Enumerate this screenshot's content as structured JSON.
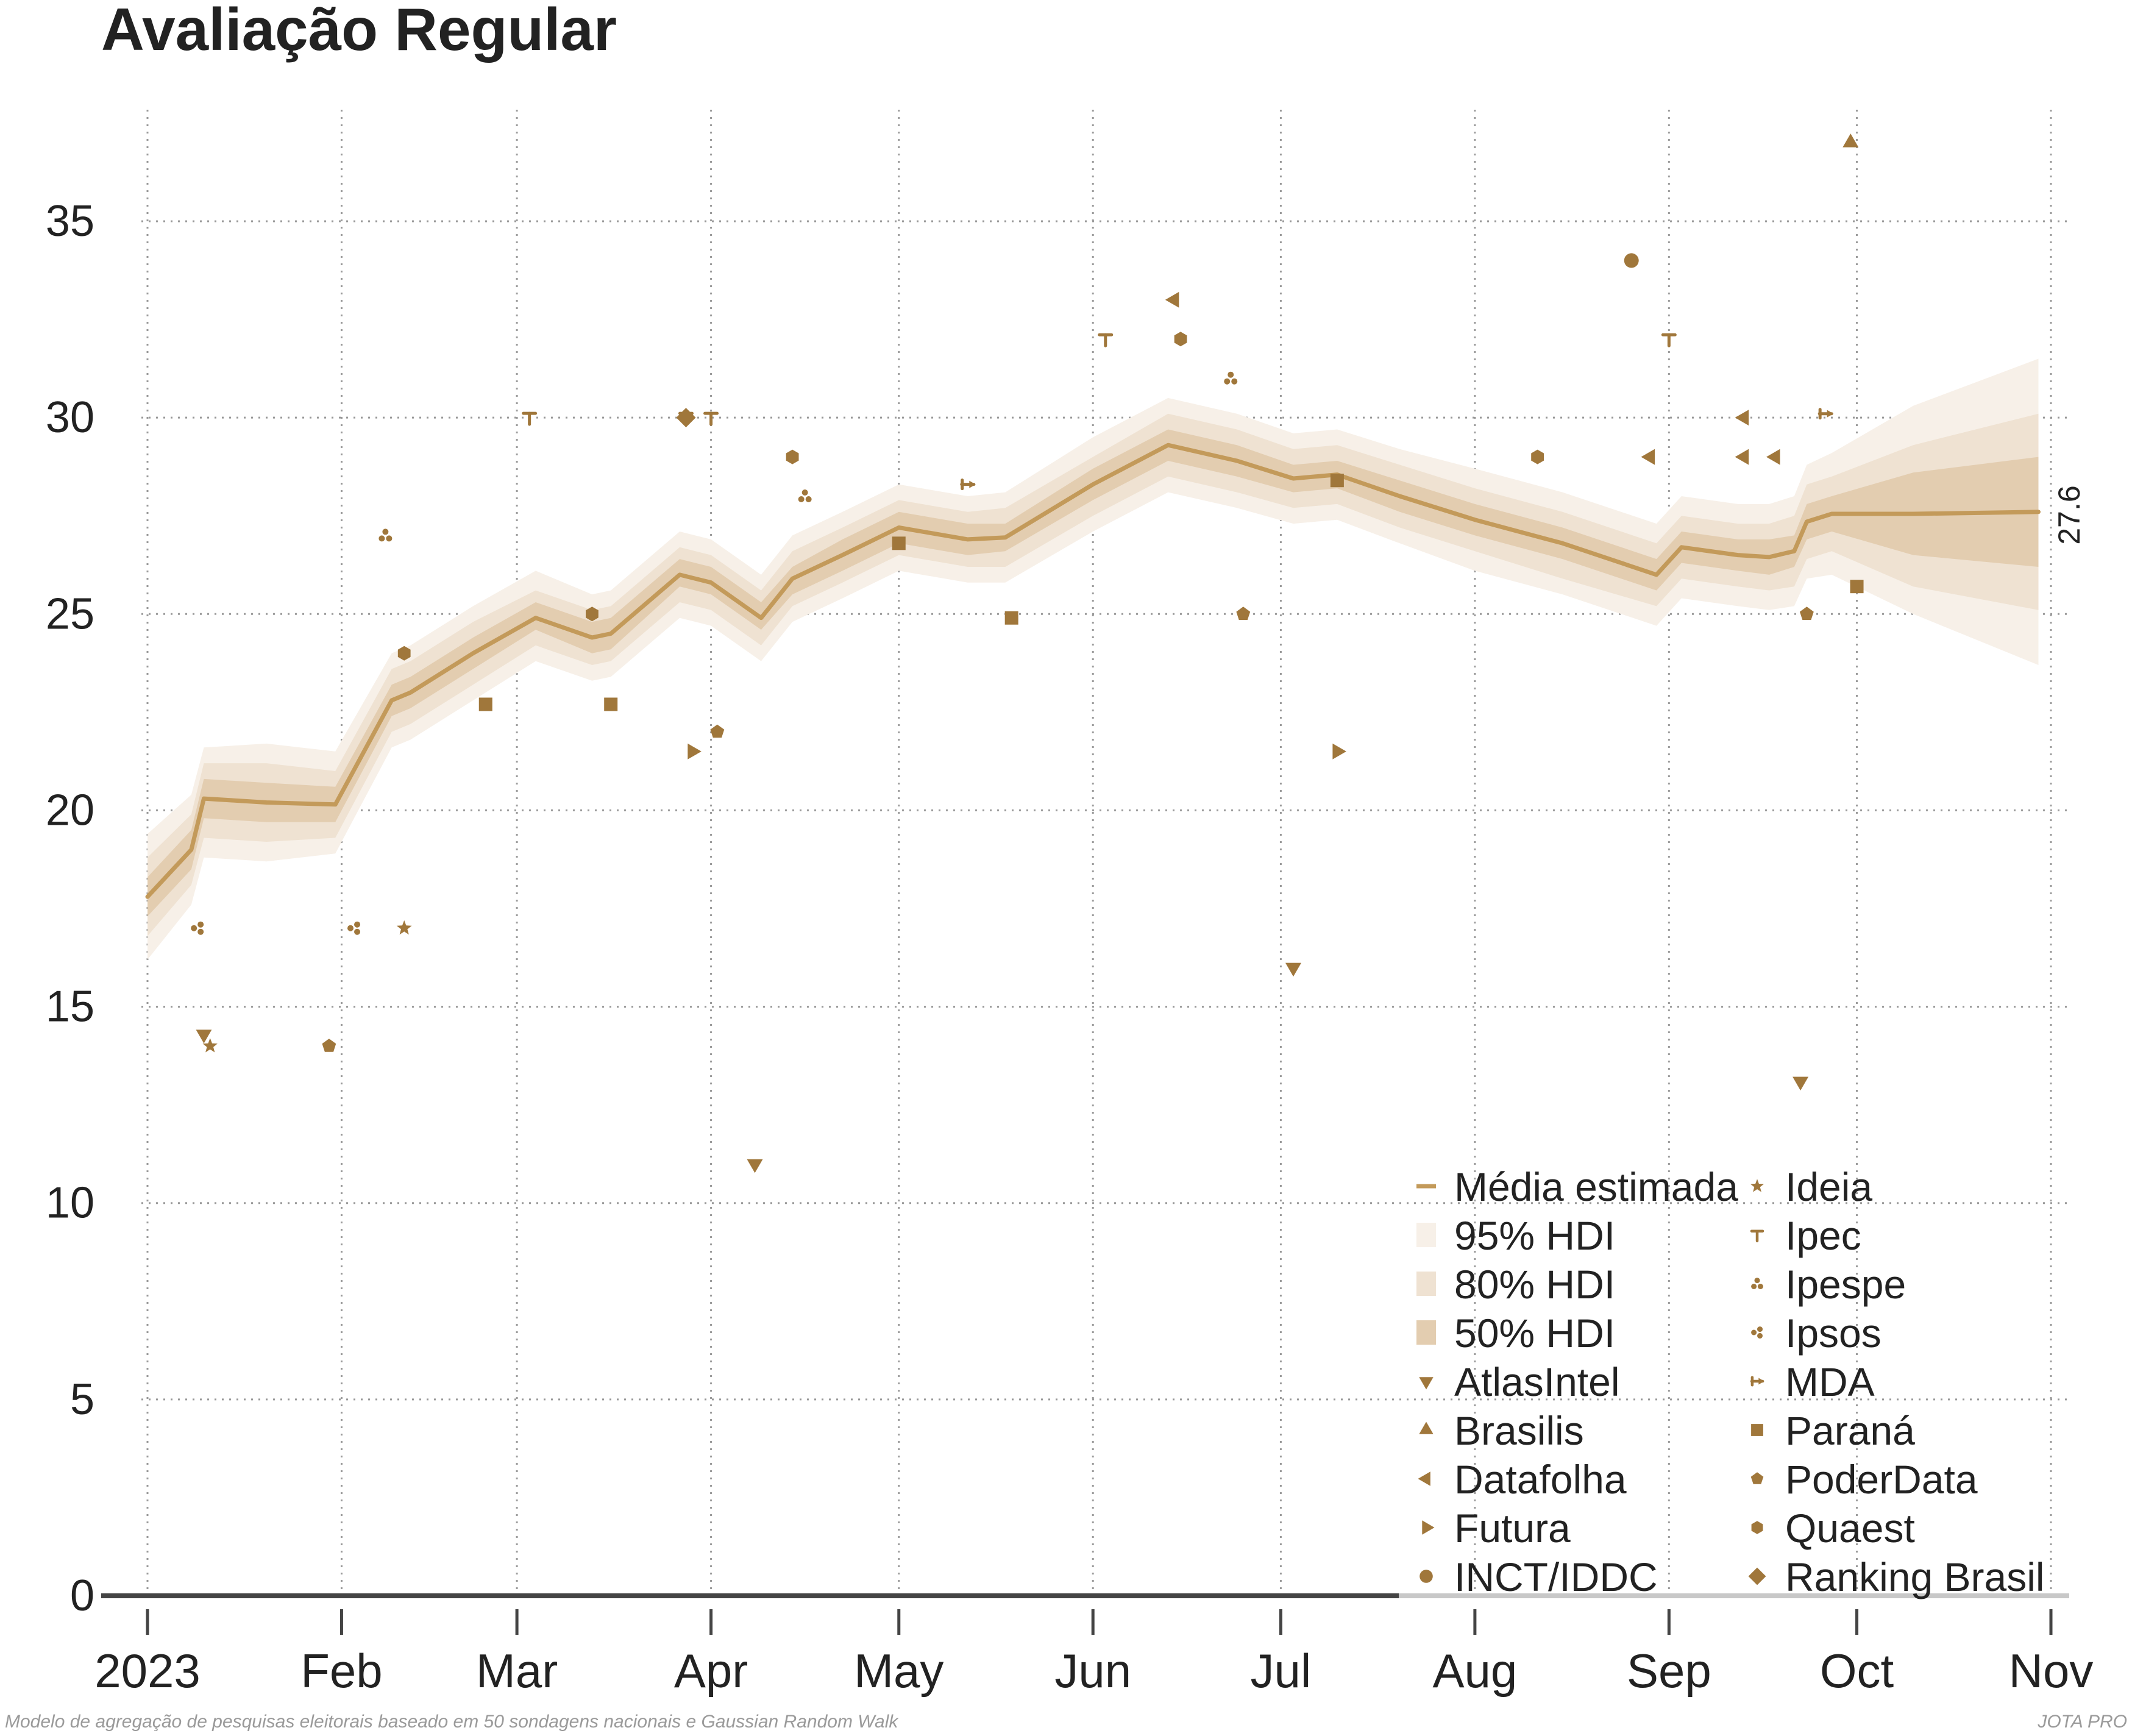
{
  "colors": {
    "accent": "#a0773b",
    "line": "#c39a5a",
    "band95": "#f7f0e8",
    "band80": "#efe2d2",
    "band50": "#e3cdb0",
    "grid": "#9a9a9a",
    "axis": "#444444",
    "text": "#222222",
    "caption": "#9a9a9a"
  },
  "chart_data": {
    "type": "line",
    "title": "Avaliação Regular",
    "xlabel": "",
    "ylabel": "",
    "ylim": [
      0,
      37.5
    ],
    "xlim": [
      "2023-01-01",
      "2023-11-01"
    ],
    "y_ticks": [
      0,
      5,
      10,
      15,
      20,
      25,
      30,
      35
    ],
    "x_ticks": [
      {
        "date": "2023-01-01",
        "label": "2023"
      },
      {
        "date": "2023-02-01",
        "label": "Feb"
      },
      {
        "date": "2023-03-01",
        "label": "Mar"
      },
      {
        "date": "2023-04-01",
        "label": "Apr"
      },
      {
        "date": "2023-05-01",
        "label": "May"
      },
      {
        "date": "2023-06-01",
        "label": "Jun"
      },
      {
        "date": "2023-07-01",
        "label": "Jul"
      },
      {
        "date": "2023-08-01",
        "label": "Aug"
      },
      {
        "date": "2023-09-01",
        "label": "Sep"
      },
      {
        "date": "2023-10-01",
        "label": "Oct"
      },
      {
        "date": "2023-11-01",
        "label": "Nov"
      }
    ],
    "grid": true,
    "legend_position": "bottom-right",
    "final_value_label": "27.6",
    "trend": {
      "name": "Média estimada",
      "points": [
        {
          "date": "2023-01-01",
          "mean": 17.8,
          "hdi95": [
            16.2,
            19.4
          ],
          "hdi80": [
            16.8,
            18.8
          ],
          "hdi50": [
            17.3,
            18.3
          ]
        },
        {
          "date": "2023-01-08",
          "mean": 19.0,
          "hdi95": [
            17.6,
            20.4
          ],
          "hdi80": [
            18.1,
            19.9
          ],
          "hdi50": [
            18.5,
            19.5
          ]
        },
        {
          "date": "2023-01-10",
          "mean": 20.3,
          "hdi95": [
            18.8,
            21.6
          ],
          "hdi80": [
            19.3,
            21.2
          ],
          "hdi50": [
            19.8,
            20.8
          ]
        },
        {
          "date": "2023-01-20",
          "mean": 20.2,
          "hdi95": [
            18.7,
            21.7
          ],
          "hdi80": [
            19.2,
            21.2
          ],
          "hdi50": [
            19.7,
            20.7
          ]
        },
        {
          "date": "2023-01-31",
          "mean": 20.15,
          "hdi95": [
            18.9,
            21.5
          ],
          "hdi80": [
            19.3,
            21.0
          ],
          "hdi50": [
            19.7,
            20.6
          ]
        },
        {
          "date": "2023-02-09",
          "mean": 22.8,
          "hdi95": [
            21.6,
            24.0
          ],
          "hdi80": [
            22.0,
            23.6
          ],
          "hdi50": [
            22.4,
            23.2
          ]
        },
        {
          "date": "2023-02-12",
          "mean": 23.0,
          "hdi95": [
            21.8,
            24.2
          ],
          "hdi80": [
            22.2,
            23.8
          ],
          "hdi50": [
            22.6,
            23.4
          ]
        },
        {
          "date": "2023-02-22",
          "mean": 24.0,
          "hdi95": [
            22.8,
            25.2
          ],
          "hdi80": [
            23.2,
            24.8
          ],
          "hdi50": [
            23.6,
            24.4
          ]
        },
        {
          "date": "2023-03-04",
          "mean": 24.9,
          "hdi95": [
            23.8,
            26.1
          ],
          "hdi80": [
            24.2,
            25.6
          ],
          "hdi50": [
            24.6,
            25.3
          ]
        },
        {
          "date": "2023-03-13",
          "mean": 24.4,
          "hdi95": [
            23.3,
            25.5
          ],
          "hdi80": [
            23.7,
            25.1
          ],
          "hdi50": [
            24.0,
            24.8
          ]
        },
        {
          "date": "2023-03-16",
          "mean": 24.5,
          "hdi95": [
            23.4,
            25.6
          ],
          "hdi80": [
            23.8,
            25.2
          ],
          "hdi50": [
            24.1,
            24.9
          ]
        },
        {
          "date": "2023-03-27",
          "mean": 26.0,
          "hdi95": [
            24.9,
            27.1
          ],
          "hdi80": [
            25.3,
            26.7
          ],
          "hdi50": [
            25.7,
            26.4
          ]
        },
        {
          "date": "2023-04-01",
          "mean": 25.8,
          "hdi95": [
            24.7,
            26.9
          ],
          "hdi80": [
            25.1,
            26.5
          ],
          "hdi50": [
            25.5,
            26.2
          ]
        },
        {
          "date": "2023-04-09",
          "mean": 24.9,
          "hdi95": [
            23.8,
            26.0
          ],
          "hdi80": [
            24.2,
            25.6
          ],
          "hdi50": [
            24.6,
            25.3
          ]
        },
        {
          "date": "2023-04-14",
          "mean": 25.9,
          "hdi95": [
            24.8,
            27.0
          ],
          "hdi80": [
            25.2,
            26.6
          ],
          "hdi50": [
            25.5,
            26.2
          ]
        },
        {
          "date": "2023-04-22",
          "mean": 26.5,
          "hdi95": [
            25.4,
            27.6
          ],
          "hdi80": [
            25.8,
            27.2
          ],
          "hdi50": [
            26.1,
            26.9
          ]
        },
        {
          "date": "2023-05-01",
          "mean": 27.2,
          "hdi95": [
            26.1,
            28.3
          ],
          "hdi80": [
            26.5,
            27.9
          ],
          "hdi50": [
            26.8,
            27.6
          ]
        },
        {
          "date": "2023-05-12",
          "mean": 26.9,
          "hdi95": [
            25.8,
            28.0
          ],
          "hdi80": [
            26.2,
            27.6
          ],
          "hdi50": [
            26.5,
            27.3
          ]
        },
        {
          "date": "2023-05-18",
          "mean": 26.95,
          "hdi95": [
            25.8,
            28.1
          ],
          "hdi80": [
            26.2,
            27.7
          ],
          "hdi50": [
            26.6,
            27.3
          ]
        },
        {
          "date": "2023-06-01",
          "mean": 28.3,
          "hdi95": [
            27.1,
            29.5
          ],
          "hdi80": [
            27.5,
            29.0
          ],
          "hdi50": [
            27.9,
            28.7
          ]
        },
        {
          "date": "2023-06-13",
          "mean": 29.3,
          "hdi95": [
            28.1,
            30.5
          ],
          "hdi80": [
            28.5,
            30.1
          ],
          "hdi50": [
            28.9,
            29.7
          ]
        },
        {
          "date": "2023-06-24",
          "mean": 28.9,
          "hdi95": [
            27.7,
            30.1
          ],
          "hdi80": [
            28.1,
            29.7
          ],
          "hdi50": [
            28.5,
            29.3
          ]
        },
        {
          "date": "2023-07-03",
          "mean": 28.45,
          "hdi95": [
            27.3,
            29.6
          ],
          "hdi80": [
            27.7,
            29.2
          ],
          "hdi50": [
            28.1,
            28.8
          ]
        },
        {
          "date": "2023-07-10",
          "mean": 28.55,
          "hdi95": [
            27.4,
            29.7
          ],
          "hdi80": [
            27.8,
            29.3
          ],
          "hdi50": [
            28.2,
            28.9
          ]
        },
        {
          "date": "2023-07-20",
          "mean": 28.0,
          "hdi95": [
            26.8,
            29.2
          ],
          "hdi80": [
            27.2,
            28.8
          ],
          "hdi50": [
            27.6,
            28.4
          ]
        },
        {
          "date": "2023-08-01",
          "mean": 27.4,
          "hdi95": [
            26.1,
            28.7
          ],
          "hdi80": [
            26.6,
            28.2
          ],
          "hdi50": [
            27.0,
            27.8
          ]
        },
        {
          "date": "2023-08-15",
          "mean": 26.8,
          "hdi95": [
            25.5,
            28.1
          ],
          "hdi80": [
            25.9,
            27.6
          ],
          "hdi50": [
            26.4,
            27.2
          ]
        },
        {
          "date": "2023-08-30",
          "mean": 26.0,
          "hdi95": [
            24.7,
            27.3
          ],
          "hdi80": [
            25.2,
            26.8
          ],
          "hdi50": [
            25.6,
            26.4
          ]
        },
        {
          "date": "2023-09-03",
          "mean": 26.7,
          "hdi95": [
            25.4,
            28.0
          ],
          "hdi80": [
            25.9,
            27.5
          ],
          "hdi50": [
            26.3,
            27.1
          ]
        },
        {
          "date": "2023-09-12",
          "mean": 26.5,
          "hdi95": [
            25.2,
            27.8
          ],
          "hdi80": [
            25.7,
            27.3
          ],
          "hdi50": [
            26.1,
            26.9
          ]
        },
        {
          "date": "2023-09-17",
          "mean": 26.45,
          "hdi95": [
            25.1,
            27.8
          ],
          "hdi80": [
            25.6,
            27.3
          ],
          "hdi50": [
            26.0,
            26.9
          ]
        },
        {
          "date": "2023-09-21",
          "mean": 26.6,
          "hdi95": [
            25.2,
            28.0
          ],
          "hdi80": [
            25.7,
            27.5
          ],
          "hdi50": [
            26.2,
            27.0
          ]
        },
        {
          "date": "2023-09-23",
          "mean": 27.35,
          "hdi95": [
            25.9,
            28.8
          ],
          "hdi80": [
            26.4,
            28.3
          ],
          "hdi50": [
            26.9,
            27.8
          ]
        },
        {
          "date": "2023-09-27",
          "mean": 27.55,
          "hdi95": [
            26.0,
            29.1
          ],
          "hdi80": [
            26.6,
            28.5
          ],
          "hdi50": [
            27.1,
            28.0
          ]
        },
        {
          "date": "2023-10-10",
          "mean": 27.55,
          "hdi95": [
            25.0,
            30.3
          ],
          "hdi80": [
            25.7,
            29.3
          ],
          "hdi50": [
            26.5,
            28.6
          ]
        },
        {
          "date": "2023-10-30",
          "mean": 27.6,
          "hdi95": [
            23.7,
            31.5
          ],
          "hdi80": [
            25.1,
            30.1
          ],
          "hdi50": [
            26.2,
            29.0
          ]
        }
      ]
    },
    "bands": [
      {
        "name": "95% HDI"
      },
      {
        "name": "80% HDI"
      },
      {
        "name": "50% HDI"
      }
    ],
    "series": [
      {
        "name": "AtlasIntel",
        "marker": "tri-down",
        "points": [
          {
            "date": "2023-01-10",
            "y": 14.3
          },
          {
            "date": "2023-04-08",
            "y": 11.0
          },
          {
            "date": "2023-07-03",
            "y": 16.0
          },
          {
            "date": "2023-09-22",
            "y": 13.1
          }
        ]
      },
      {
        "name": "Brasilis",
        "marker": "tri-up",
        "points": [
          {
            "date": "2023-09-30",
            "y": 37.0
          }
        ]
      },
      {
        "name": "Datafolha",
        "marker": "tri-left",
        "points": [
          {
            "date": "2023-06-14",
            "y": 33.0
          },
          {
            "date": "2023-08-29",
            "y": 29.0
          },
          {
            "date": "2023-09-13",
            "y": 30.0
          },
          {
            "date": "2023-09-13",
            "y": 29.0
          },
          {
            "date": "2023-09-18",
            "y": 29.0
          }
        ]
      },
      {
        "name": "Futura",
        "marker": "tri-right",
        "points": [
          {
            "date": "2023-03-29",
            "y": 21.5
          },
          {
            "date": "2023-07-10",
            "y": 21.5
          }
        ]
      },
      {
        "name": "INCT/IDDC",
        "marker": "circle",
        "points": [
          {
            "date": "2023-08-26",
            "y": 34.0
          }
        ]
      },
      {
        "name": "Ideia",
        "marker": "star",
        "points": [
          {
            "date": "2023-01-11",
            "y": 14.0
          },
          {
            "date": "2023-02-11",
            "y": 17.0
          }
        ]
      },
      {
        "name": "Ipec",
        "marker": "ipec",
        "points": [
          {
            "date": "2023-03-03",
            "y": 30.0
          },
          {
            "date": "2023-03-28",
            "y": 30.0
          },
          {
            "date": "2023-04-01",
            "y": 30.0
          },
          {
            "date": "2023-06-03",
            "y": 32.0
          },
          {
            "date": "2023-09-01",
            "y": 32.0
          }
        ]
      },
      {
        "name": "Ipespe",
        "marker": "ipespe",
        "points": [
          {
            "date": "2023-02-08",
            "y": 27.0
          },
          {
            "date": "2023-04-16",
            "y": 28.0
          },
          {
            "date": "2023-06-23",
            "y": 31.0
          }
        ]
      },
      {
        "name": "Ipsos",
        "marker": "ipsos",
        "points": [
          {
            "date": "2023-01-09",
            "y": 17.0
          },
          {
            "date": "2023-02-03",
            "y": 17.0
          }
        ]
      },
      {
        "name": "MDA",
        "marker": "mda",
        "points": [
          {
            "date": "2023-05-12",
            "y": 28.3
          },
          {
            "date": "2023-09-26",
            "y": 30.1
          }
        ]
      },
      {
        "name": "Paraná",
        "marker": "square",
        "points": [
          {
            "date": "2023-02-24",
            "y": 22.7
          },
          {
            "date": "2023-03-16",
            "y": 22.7
          },
          {
            "date": "2023-05-01",
            "y": 26.8
          },
          {
            "date": "2023-05-19",
            "y": 24.9
          },
          {
            "date": "2023-07-10",
            "y": 28.4
          },
          {
            "date": "2023-10-01",
            "y": 25.7
          }
        ]
      },
      {
        "name": "PoderData",
        "marker": "pentagon",
        "points": [
          {
            "date": "2023-01-30",
            "y": 14.0
          },
          {
            "date": "2023-04-02",
            "y": 22.0
          },
          {
            "date": "2023-06-25",
            "y": 25.0
          },
          {
            "date": "2023-09-23",
            "y": 25.0
          }
        ]
      },
      {
        "name": "Quaest",
        "marker": "hexagon",
        "points": [
          {
            "date": "2023-02-11",
            "y": 24.0
          },
          {
            "date": "2023-03-13",
            "y": 25.0
          },
          {
            "date": "2023-04-14",
            "y": 29.0
          },
          {
            "date": "2023-06-15",
            "y": 32.0
          },
          {
            "date": "2023-08-11",
            "y": 29.0
          }
        ]
      },
      {
        "name": "Ranking Brasil",
        "marker": "diamond",
        "points": [
          {
            "date": "2023-03-28",
            "y": 30.0
          }
        ]
      }
    ],
    "legend": [
      {
        "label": "Média estimada",
        "marker": "line"
      },
      {
        "label": "95% HDI",
        "marker": "band95"
      },
      {
        "label": "80% HDI",
        "marker": "band80"
      },
      {
        "label": "50% HDI",
        "marker": "band50"
      },
      {
        "label": "AtlasIntel",
        "marker": "tri-down"
      },
      {
        "label": "Brasilis",
        "marker": "tri-up"
      },
      {
        "label": "Datafolha",
        "marker": "tri-left"
      },
      {
        "label": "Futura",
        "marker": "tri-right"
      },
      {
        "label": "INCT/IDDC",
        "marker": "circle"
      },
      {
        "label": "Ideia",
        "marker": "star"
      },
      {
        "label": "Ipec",
        "marker": "ipec"
      },
      {
        "label": "Ipespe",
        "marker": "ipespe"
      },
      {
        "label": "Ipsos",
        "marker": "ipsos"
      },
      {
        "label": "MDA",
        "marker": "mda"
      },
      {
        "label": "Paraná",
        "marker": "square"
      },
      {
        "label": "PoderData",
        "marker": "pentagon"
      },
      {
        "label": "Quaest",
        "marker": "hexagon"
      },
      {
        "label": "Ranking Brasil",
        "marker": "diamond"
      }
    ]
  },
  "caption_left": "Modelo de agregação de pesquisas eleitorais baseado em 50 sondagens nacionais e Gaussian Random Walk",
  "caption_right": "JOTA PRO"
}
